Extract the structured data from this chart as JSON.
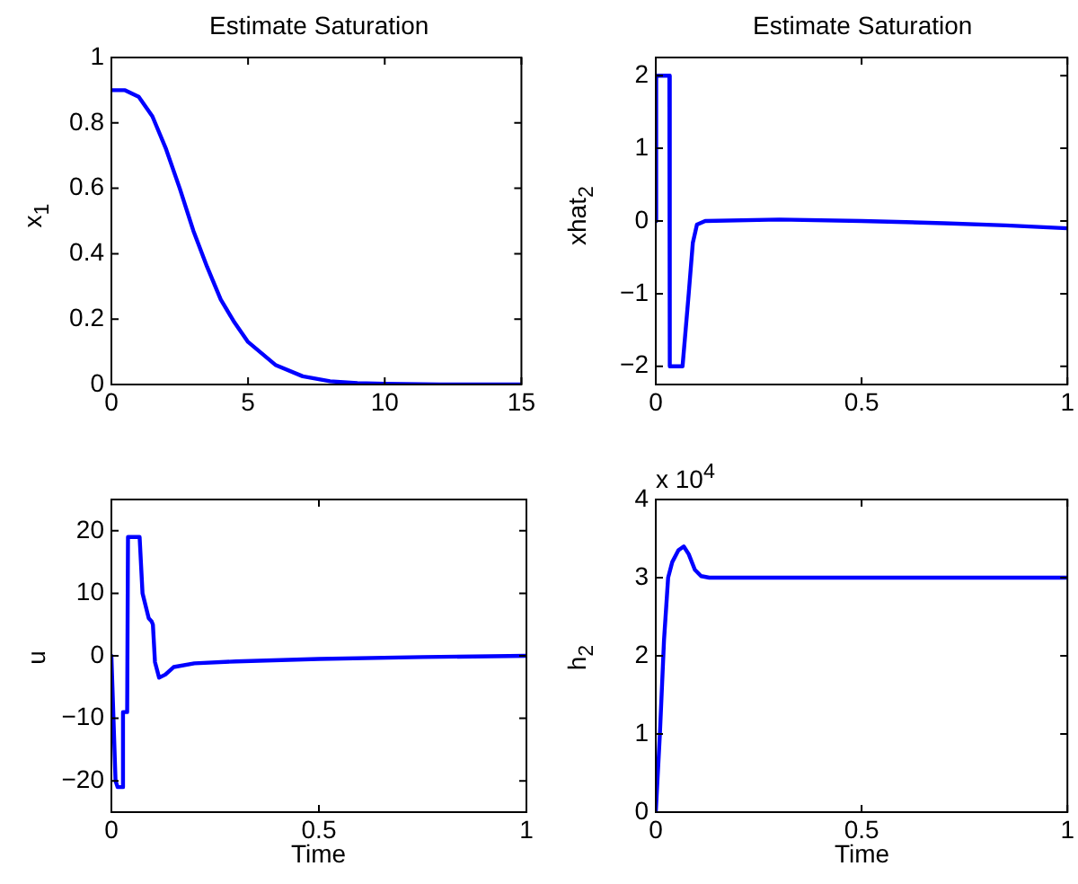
{
  "chart_data": [
    {
      "type": "line",
      "title": "Estimate Saturation",
      "ylabel": "x$_{1}$",
      "marker": "none",
      "xlim": [
        0,
        15
      ],
      "xticks": [
        0,
        5,
        10,
        15
      ],
      "ylim": [
        0,
        1
      ],
      "yticks": [
        0,
        0.2,
        0.4,
        0.6,
        0.8,
        1
      ],
      "series": [
        {
          "color": "#0000ff",
          "x": [
            0,
            0.5,
            1,
            1.5,
            2,
            2.5,
            3,
            3.5,
            4,
            4.5,
            5,
            6,
            7,
            8,
            9,
            10,
            12,
            15
          ],
          "values": [
            0.9,
            0.9,
            0.88,
            0.82,
            0.72,
            0.6,
            0.47,
            0.36,
            0.26,
            0.19,
            0.13,
            0.06,
            0.025,
            0.01,
            0.004,
            0.002,
            0,
            0
          ]
        }
      ]
    },
    {
      "type": "line",
      "title": "Estimate Saturation",
      "ylabel": "xhat$_{2}$",
      "marker": "none",
      "xlim": [
        0,
        1
      ],
      "xticks": [
        0,
        0.5,
        1
      ],
      "ylim": [
        -2.25,
        2.25
      ],
      "yticks": [
        -2,
        -1,
        0,
        1,
        2
      ],
      "series": [
        {
          "color": "#0000ff",
          "x": [
            0,
            0.001,
            0.033,
            0.034,
            0.065,
            0.08,
            0.09,
            0.1,
            0.12,
            0.3,
            0.5,
            0.7,
            0.85,
            1
          ],
          "values": [
            0,
            2,
            2,
            -2,
            -2,
            -1,
            -0.3,
            -0.05,
            0,
            0.02,
            0,
            -0.03,
            -0.06,
            -0.1
          ]
        }
      ]
    },
    {
      "type": "line",
      "xlabel": "Time",
      "ylabel": "u",
      "marker": "none",
      "xlim": [
        0,
        1
      ],
      "xticks": [
        0,
        0.5,
        1
      ],
      "ylim": [
        -25,
        25
      ],
      "yticks": [
        -20,
        -10,
        0,
        10,
        20
      ],
      "series": [
        {
          "color": "#0000ff",
          "x": [
            0,
            0.01,
            0.015,
            0.027,
            0.028,
            0.038,
            0.04,
            0.068,
            0.075,
            0.09,
            0.097,
            0.1,
            0.105,
            0.115,
            0.13,
            0.15,
            0.2,
            0.3,
            0.5,
            0.75,
            1
          ],
          "values": [
            0,
            -20,
            -21,
            -21,
            -9,
            -9,
            19,
            19,
            10,
            6,
            5.5,
            5,
            -1,
            -3.5,
            -3,
            -1.8,
            -1.2,
            -0.9,
            -0.5,
            -0.2,
            0
          ]
        }
      ]
    },
    {
      "type": "line",
      "xlabel": "Time",
      "ylabel": "h$_{2}$",
      "annotations": [
        "x 10$^{4}$"
      ],
      "marker": "none",
      "xlim": [
        0,
        1
      ],
      "xticks": [
        0,
        0.5,
        1
      ],
      "ylim": [
        0,
        4
      ],
      "yticks": [
        0,
        1,
        2,
        3,
        4
      ],
      "series": [
        {
          "color": "#0000ff",
          "x": [
            0,
            0.01,
            0.02,
            0.03,
            0.04,
            0.055,
            0.068,
            0.08,
            0.095,
            0.11,
            0.13,
            1
          ],
          "values": [
            0,
            1,
            2.2,
            3,
            3.2,
            3.35,
            3.4,
            3.3,
            3.1,
            3.02,
            3,
            3
          ]
        }
      ]
    }
  ]
}
